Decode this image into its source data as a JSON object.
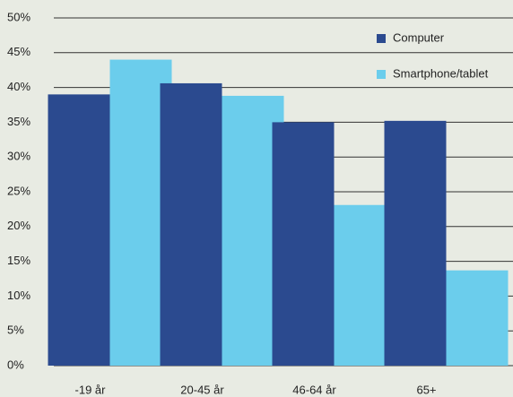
{
  "chart_data": {
    "type": "bar",
    "categories": [
      "-19 år",
      "20-45 år",
      "46-64 år",
      "65+"
    ],
    "series": [
      {
        "name": "Computer",
        "color": "#2b4a8f",
        "values": [
          39,
          40.6,
          35,
          35.2
        ]
      },
      {
        "name": "Smartphone/tablet",
        "color": "#6bcdec",
        "values": [
          44,
          38.8,
          23.1,
          13.7
        ]
      }
    ],
    "ylim": [
      0,
      50
    ],
    "yticks": [
      {
        "value": 0,
        "label": "0%"
      },
      {
        "value": 5,
        "label": "5%"
      },
      {
        "value": 10,
        "label": "10%"
      },
      {
        "value": 15,
        "label": "15%"
      },
      {
        "value": 20,
        "label": "20%"
      },
      {
        "value": 25,
        "label": "25%"
      },
      {
        "value": 30,
        "label": "30%"
      },
      {
        "value": 35,
        "label": "35%"
      },
      {
        "value": 40,
        "label": "40%"
      },
      {
        "value": 45,
        "label": "45%"
      },
      {
        "value": 50,
        "label": "50%"
      }
    ],
    "grid": true,
    "legend": "top-right"
  }
}
